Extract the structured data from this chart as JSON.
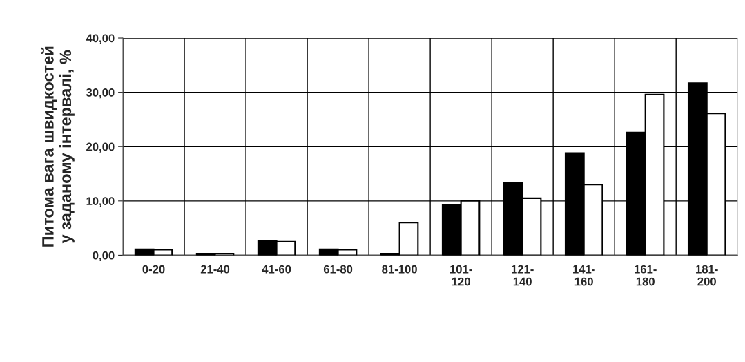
{
  "chart_data": {
    "type": "bar",
    "ylabel": "Питома вага швидкостей\nу заданому інтервалі, %",
    "categories": [
      "0-20",
      "21-40",
      "41-60",
      "61-80",
      "81-100",
      "101-\n120",
      "121-\n140",
      "141-\n160",
      "161-\n180",
      "181-\n200"
    ],
    "series": [
      {
        "color": "#000000",
        "values": [
          1.1,
          0.3,
          2.7,
          1.1,
          0.3,
          9.2,
          13.4,
          18.8,
          22.6,
          31.7
        ]
      },
      {
        "color": "#ffffff",
        "values": [
          1.0,
          0.3,
          2.5,
          1.0,
          6.0,
          10.0,
          10.5,
          13.0,
          29.6,
          26.1
        ]
      }
    ],
    "ylim": [
      0,
      40
    ],
    "yticks": [
      {
        "value": 0,
        "label": "0,00"
      },
      {
        "value": 10,
        "label": "10,00"
      },
      {
        "value": 20,
        "label": "20,00"
      },
      {
        "value": 30,
        "label": "30,00"
      },
      {
        "value": 40,
        "label": "40,00"
      }
    ],
    "grid": true
  }
}
